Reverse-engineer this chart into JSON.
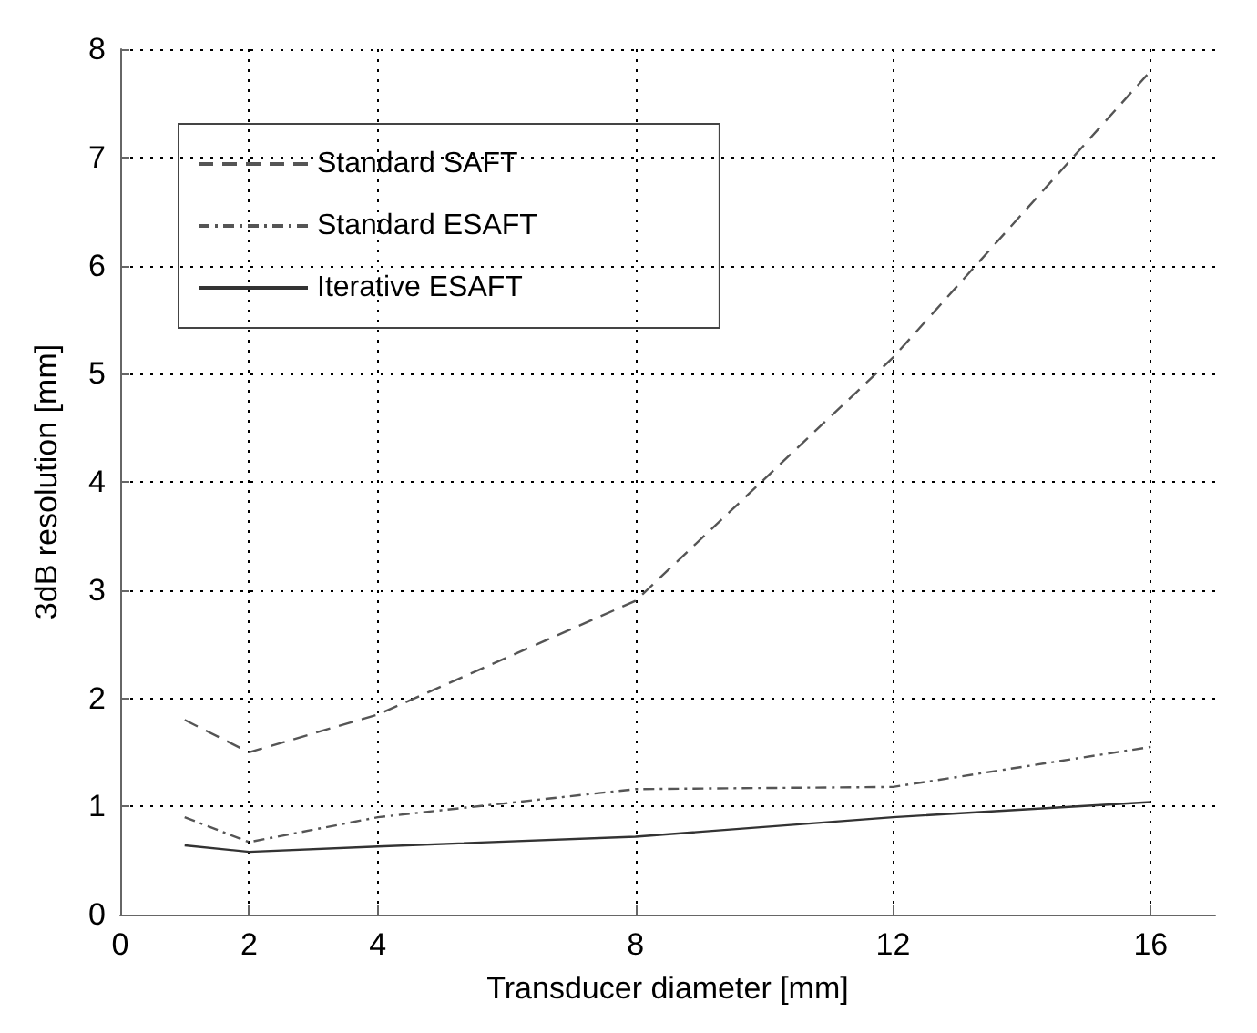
{
  "chart_data": {
    "type": "line",
    "xlabel": "Transducer diameter [mm]",
    "ylabel": "3dB resolution [mm]",
    "x": [
      1,
      2,
      4,
      8,
      12,
      16
    ],
    "xlim": [
      0,
      17
    ],
    "xticks": [
      0,
      2,
      4,
      8,
      12,
      16
    ],
    "ylim": [
      0,
      8
    ],
    "yticks": [
      0,
      1,
      2,
      3,
      4,
      5,
      6,
      7,
      8
    ],
    "grid": true,
    "legend": "top left",
    "marker": "none",
    "series": [
      {
        "name": "Standard SAFT",
        "color": "#555555",
        "line_style": "dashed",
        "values": [
          1.8,
          1.5,
          1.85,
          2.9,
          5.15,
          7.8
        ]
      },
      {
        "name": "Standard ESAFT",
        "color": "#555555",
        "line_style": "dashdot",
        "values": [
          0.9,
          0.67,
          0.9,
          1.16,
          1.18,
          1.55
        ]
      },
      {
        "name": "Iterative ESAFT",
        "color": "#333333",
        "line_style": "solid",
        "values": [
          0.64,
          0.58,
          0.63,
          0.72,
          0.9,
          1.04
        ]
      }
    ]
  }
}
